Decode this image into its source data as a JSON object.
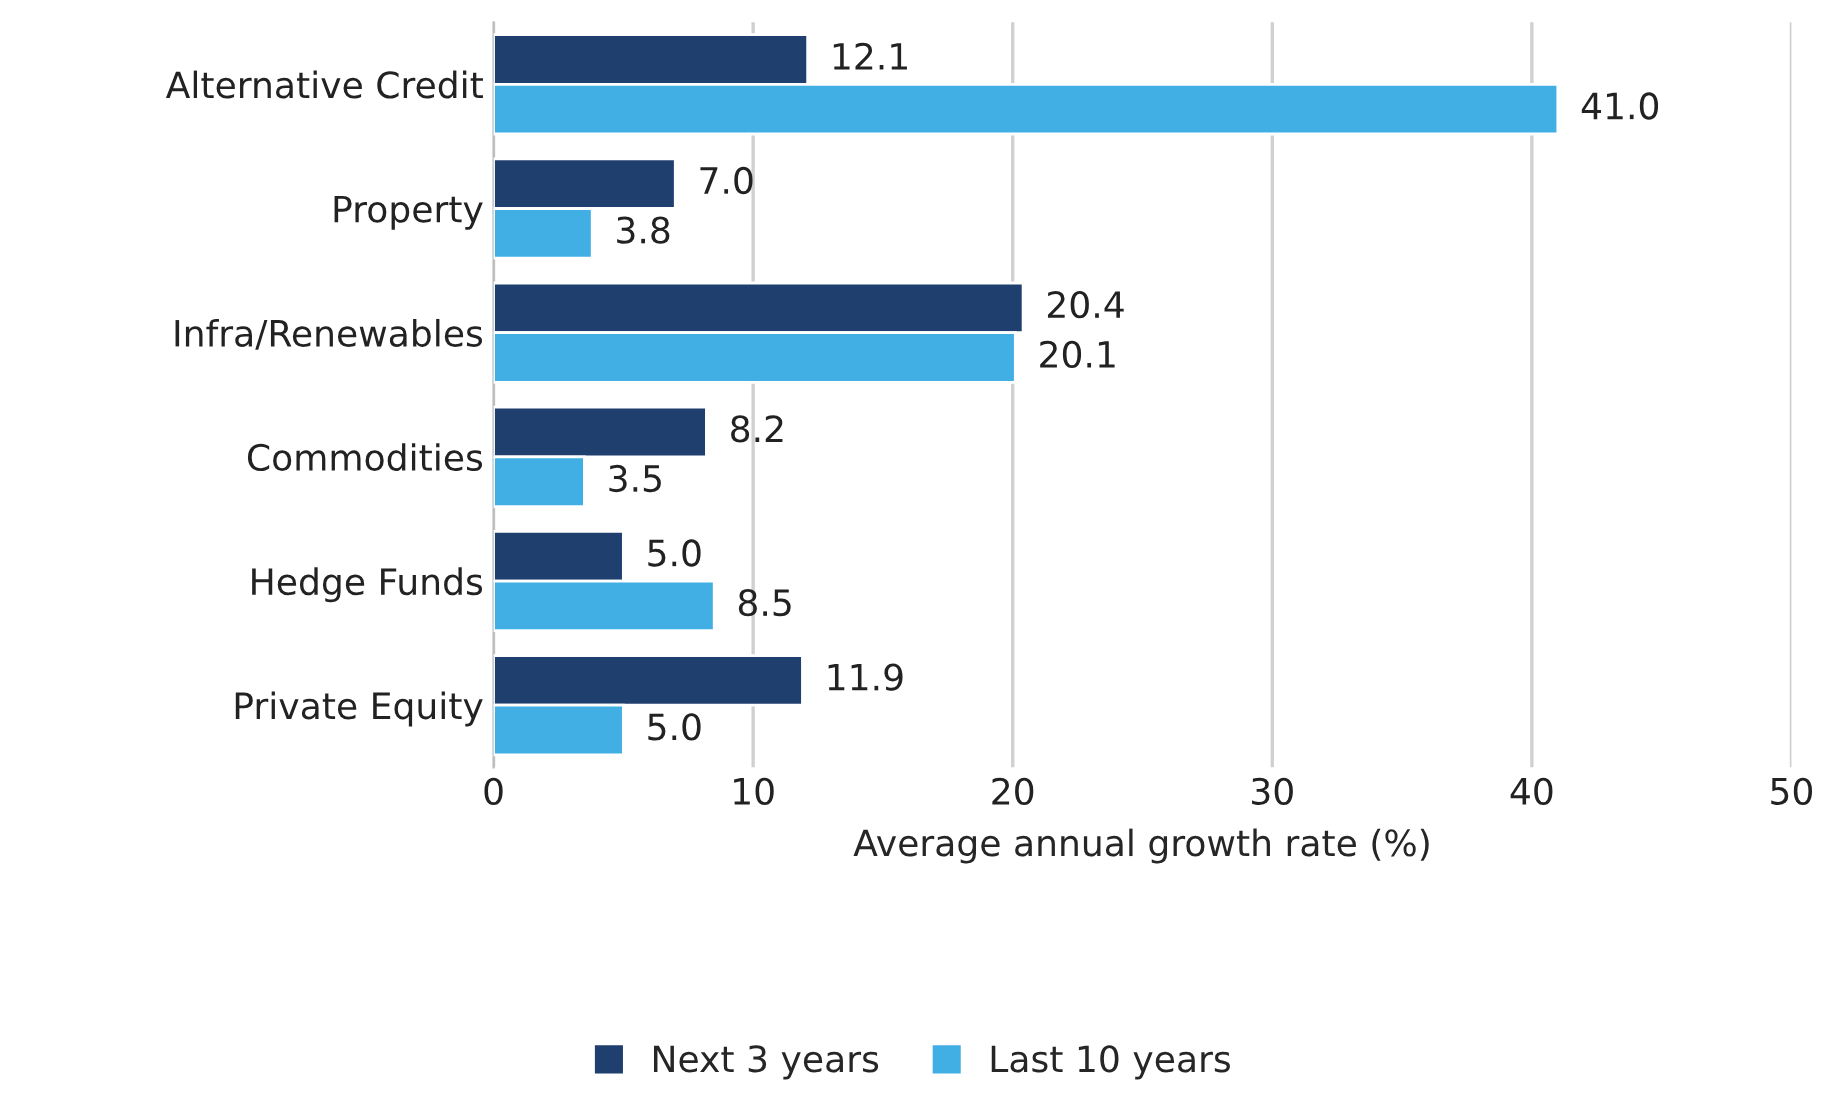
{
  "chart_data": {
    "type": "bar",
    "orientation": "horizontal",
    "xlabel": "Average annual growth rate (%)",
    "categories": [
      "Alternative Credit",
      "Property",
      "Infra/Renewables",
      "Commodities",
      "Hedge Funds",
      "Private Equity"
    ],
    "series": [
      {
        "name": "Next 3 years",
        "color": "#1f3f6e",
        "values": [
          12.1,
          7.0,
          20.4,
          8.2,
          5.0,
          11.9
        ],
        "value_labels": [
          "12.1",
          "7.0",
          "20.4",
          "8.2",
          "5.0",
          "11.9"
        ]
      },
      {
        "name": "Last 10 years",
        "color": "#41afe4",
        "values": [
          41.0,
          3.8,
          20.1,
          3.5,
          8.5,
          5.0
        ],
        "value_labels": [
          "41.0",
          "3.8",
          "20.1",
          "3.5",
          "8.5",
          "5.0"
        ]
      }
    ],
    "xlim": [
      0,
      50
    ],
    "xticks": [
      0,
      10,
      20,
      30,
      40,
      50
    ],
    "grid": "x",
    "legend": "bottom"
  }
}
